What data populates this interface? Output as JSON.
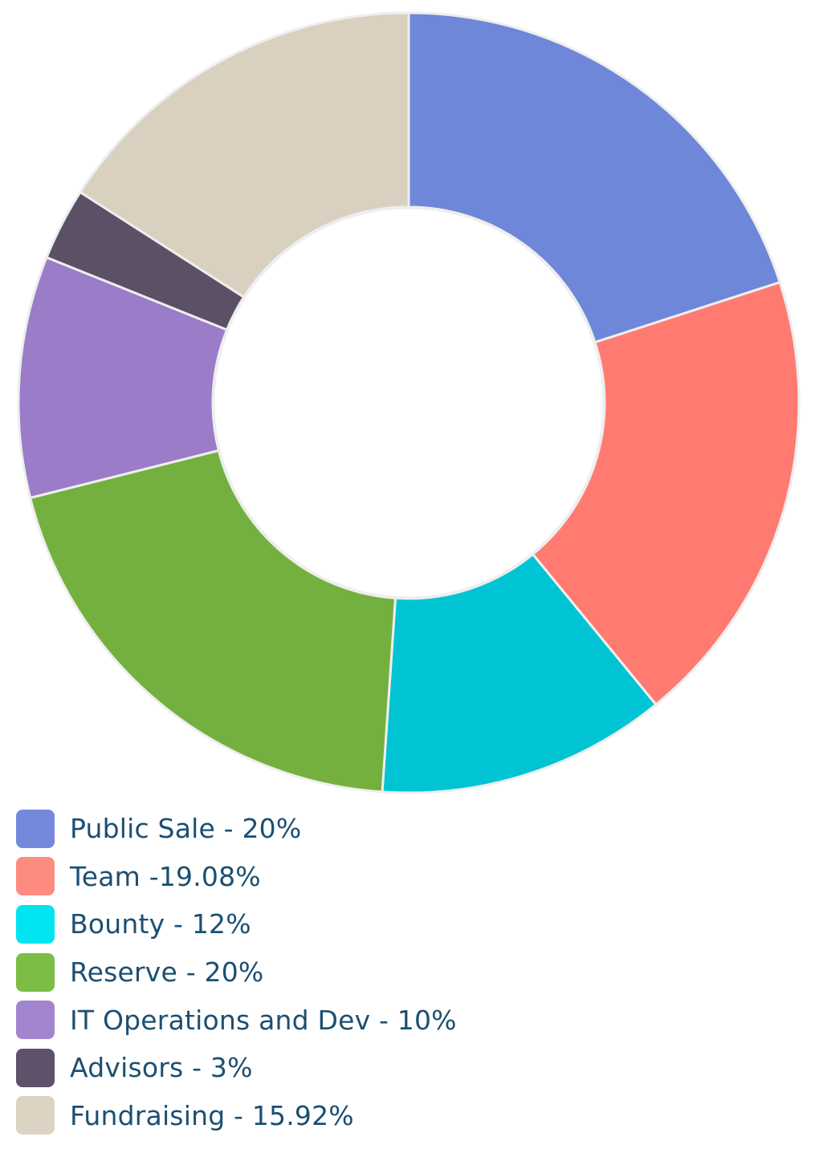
{
  "chart_data": {
    "type": "pie",
    "donut": true,
    "start_angle_deg": 0,
    "direction": "clockwise",
    "slices": [
      {
        "name": "Public Sale",
        "value": 20,
        "color": "#6f87d8",
        "legend_label": "Public Sale - 20%"
      },
      {
        "name": "Team",
        "value": 19.08,
        "color": "#ff7b71",
        "legend_label": "Team -19.08%"
      },
      {
        "name": "Bounty",
        "value": 12,
        "color": "#00c4d4",
        "legend_label": "Bounty - 12%"
      },
      {
        "name": "Reserve",
        "value": 20,
        "color": "#74b03f",
        "legend_label": "Reserve - 20%"
      },
      {
        "name": "IT Operations and Dev",
        "value": 10,
        "color": "#9a7cc9",
        "legend_label": "IT Operations and Dev - 10%"
      },
      {
        "name": "Advisors",
        "value": 3,
        "color": "#5b5066",
        "legend_label": "Advisors - 3%"
      },
      {
        "name": "Fundraising",
        "value": 15.92,
        "color": "#d9d0c0",
        "legend_label": "Fundraising - 15.92%"
      }
    ],
    "legend_position": "bottom-left",
    "legend_swatches": [
      {
        "color": "#7489db"
      },
      {
        "color": "#fe8b80"
      },
      {
        "color": "#00e5ef"
      },
      {
        "color": "#7bbd45"
      },
      {
        "color": "#a185cf"
      },
      {
        "color": "#5d526a"
      },
      {
        "color": "#dcd3c3"
      }
    ]
  },
  "legend": {
    "items": [
      {
        "label": "Public Sale - 20%"
      },
      {
        "label": "Team -19.08%"
      },
      {
        "label": "Bounty - 12%"
      },
      {
        "label": "Reserve - 20%"
      },
      {
        "label": "IT Operations and Dev - 10%"
      },
      {
        "label": "Advisors - 3%"
      },
      {
        "label": "Fundraising - 15.92%"
      }
    ]
  }
}
